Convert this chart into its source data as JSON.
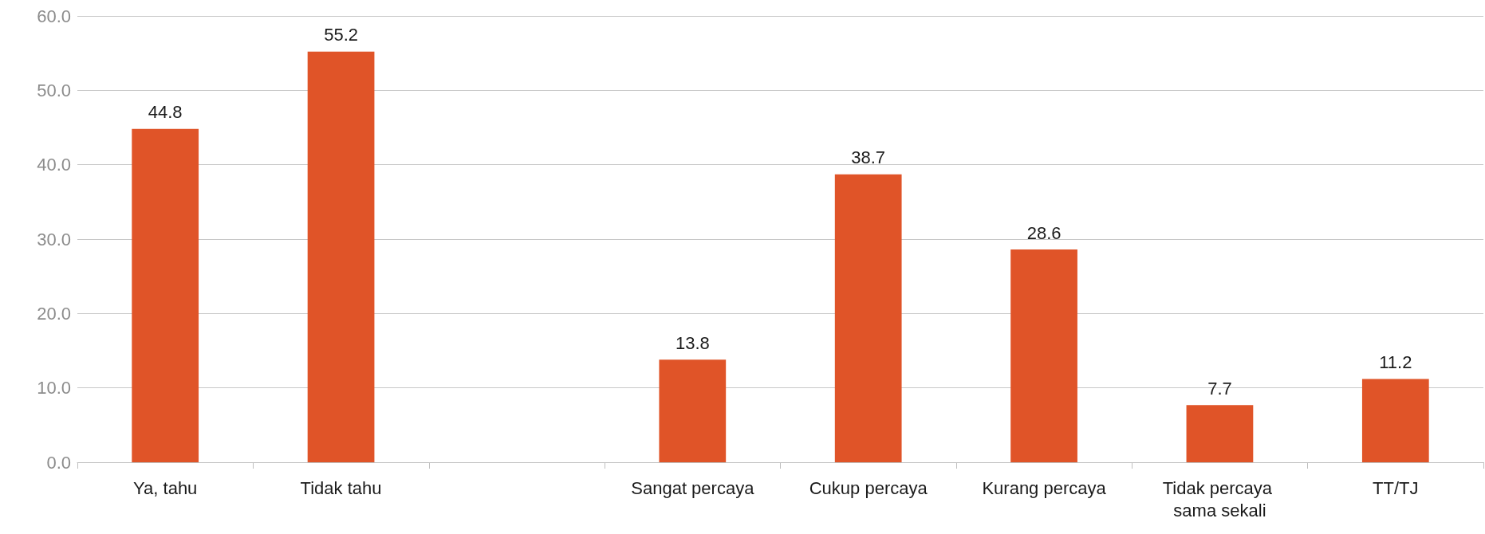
{
  "chart_data": {
    "type": "bar",
    "categories": [
      "Ya, tahu",
      "Tidak tahu",
      null,
      "Sangat percaya",
      "Cukup percaya",
      "Kurang percaya",
      "Tidak percaya sama sekali",
      "TT/TJ"
    ],
    "values": [
      44.8,
      55.2,
      null,
      13.8,
      38.7,
      28.6,
      7.7,
      11.2
    ],
    "color": "#e05428",
    "ylim": [
      0,
      60
    ],
    "yticks": [
      {
        "value": 0,
        "label": "0.0"
      },
      {
        "value": 10,
        "label": "10.0"
      },
      {
        "value": 20,
        "label": "20.0"
      },
      {
        "value": 30,
        "label": "30.0"
      },
      {
        "value": 40,
        "label": "40.0"
      },
      {
        "value": 50,
        "label": "50.0"
      },
      {
        "value": 60,
        "label": "60.0"
      }
    ],
    "grid": "y",
    "data_labels": true
  }
}
